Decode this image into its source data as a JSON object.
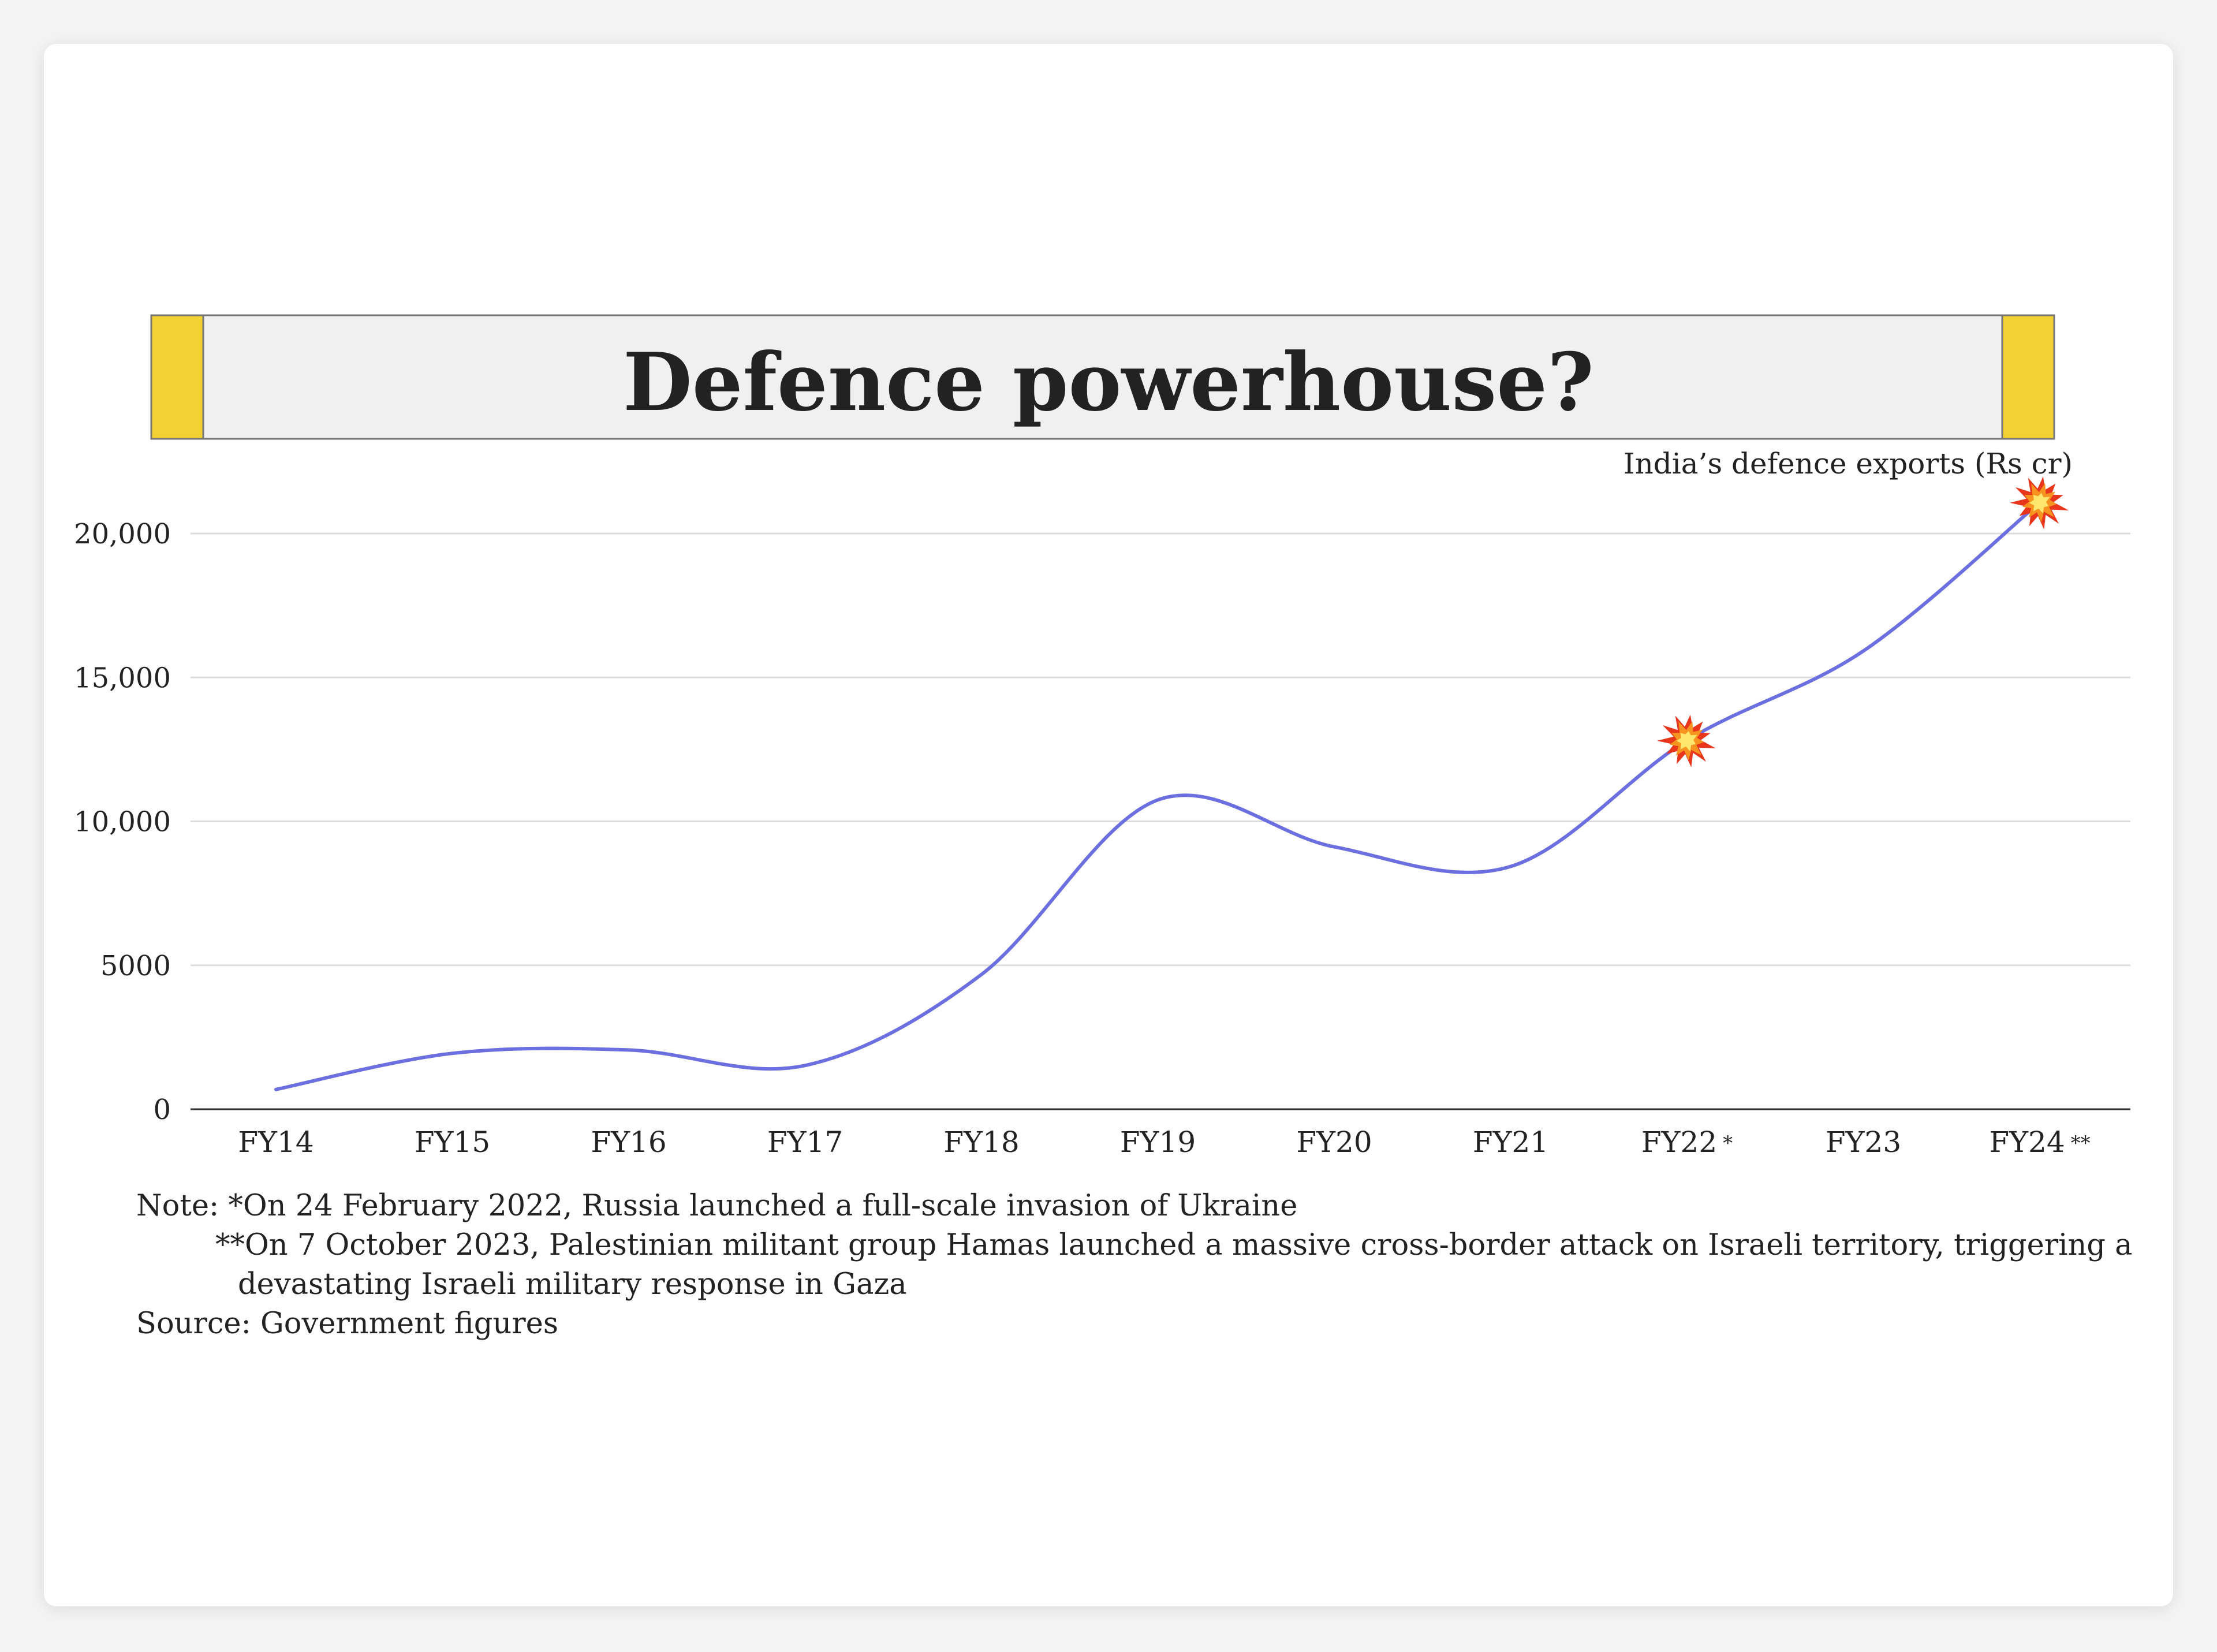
{
  "colors": {
    "background": "#f4f4f4",
    "card": "#ffffff",
    "banner_fill": "#f0f0f0",
    "banner_border": "#777777",
    "banner_accent": "#f2d232",
    "line": "#6b6fe0",
    "grid": "#dddddd",
    "axis": "#333333",
    "text": "#222222",
    "burst_outer": "#e8351c",
    "burst_mid": "#f7931e",
    "burst_inner": "#ffe66d"
  },
  "chart_data": {
    "type": "line",
    "title": "Defence powerhouse?",
    "subtitle": "India’s defence exports (Rs cr)",
    "xlabel": "",
    "ylabel": "",
    "categories": [
      "FY14",
      "FY15",
      "FY16",
      "FY17",
      "FY18",
      "FY19",
      "FY20",
      "FY21",
      "FY22",
      "FY23",
      "FY24"
    ],
    "category_markers": [
      "",
      "",
      "",
      "",
      "",
      "",
      "",
      "",
      "*",
      "",
      "**"
    ],
    "series": [
      {
        "values": [
          686,
          1941,
          2059,
          1521,
          4682,
          10746,
          9116,
          8434,
          12815,
          15920,
          21083
        ]
      }
    ],
    "ylim": [
      0,
      20000
    ],
    "yticks": [
      0,
      5000,
      10000,
      15000,
      20000
    ],
    "ytick_labels": [
      "0",
      "5000",
      "10,000",
      "15,000",
      "20,000"
    ],
    "grid": "horizontal",
    "legend": "none",
    "highlighted_points": [
      "FY22",
      "FY24"
    ],
    "highlight_icon": "explosion-burst-icon"
  },
  "notes": {
    "line1": "Note: *On 24 February 2022, Russia launched a full-scale invasion of Ukraine",
    "line2": "**On 7 October 2023, Palestinian militant group Hamas launched a massive cross-border attack on Israeli territory, triggering a",
    "line3": "devastating Israeli military response in Gaza",
    "source": "Source: Government figures"
  }
}
